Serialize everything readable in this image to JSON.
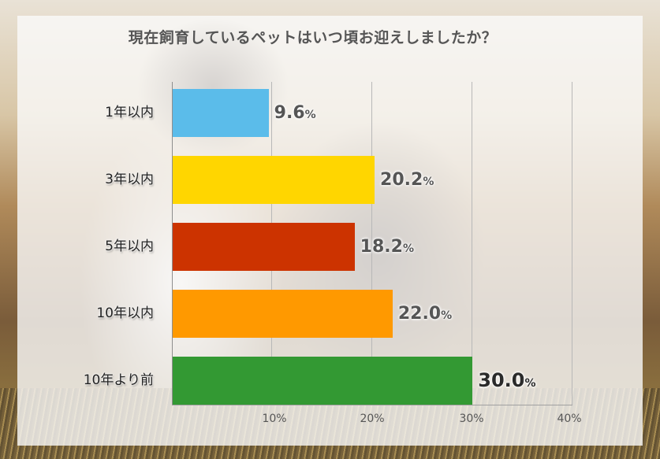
{
  "chart_data": {
    "type": "bar",
    "orientation": "horizontal",
    "title": "現在飼育しているペットはいつ頃お迎えしましたか？",
    "categories": [
      "1年以内",
      "3年以内",
      "5年以内",
      "10年以内",
      "10年より前"
    ],
    "values": [
      9.6,
      20.2,
      18.2,
      22.0,
      30.0
    ],
    "value_labels": [
      "9.6",
      "20.2",
      "18.2",
      "22.0",
      "30.0"
    ],
    "value_suffix": "%",
    "colors": [
      "#5bbcea",
      "#ffd600",
      "#cc3300",
      "#ff9900",
      "#339933"
    ],
    "xlabel": "",
    "ylabel": "",
    "xlim": [
      0,
      40
    ],
    "xticks": [
      "10%",
      "20%",
      "30%",
      "40%"
    ],
    "grid": true,
    "legend": null
  },
  "title": "現在飼育しているペットはいつ頃お迎えしましたか？",
  "ticks": [
    "10%",
    "20%",
    "30%",
    "40%"
  ]
}
